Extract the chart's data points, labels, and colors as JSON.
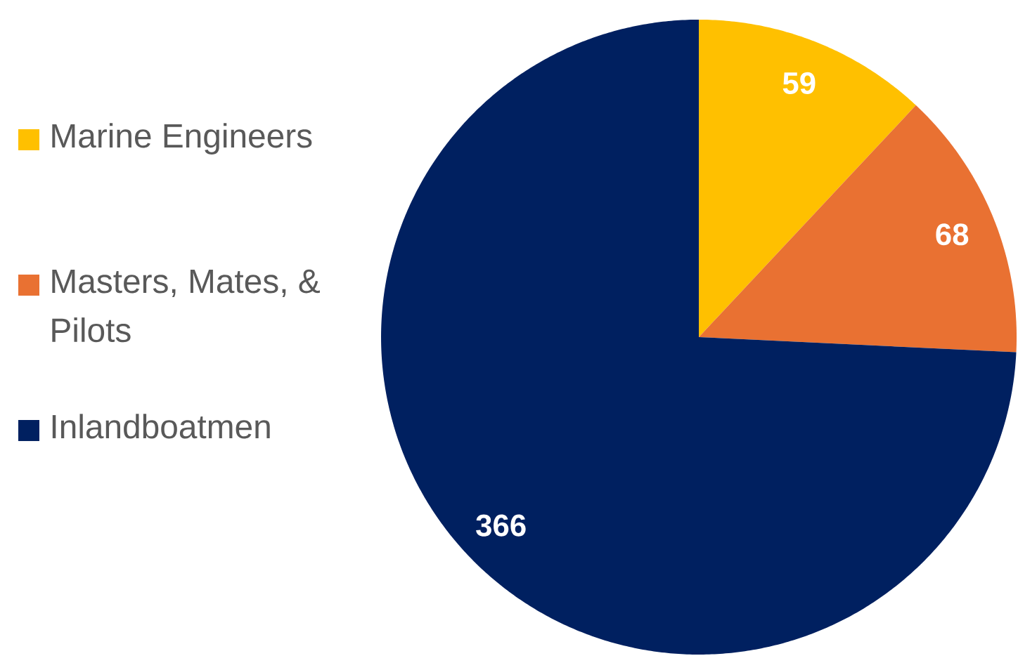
{
  "chart_data": {
    "type": "pie",
    "categories": [
      "Marine Engineers",
      "Masters, Mates, & Pilots",
      "Inlandboatmen"
    ],
    "values": [
      59,
      68,
      366
    ],
    "colors": [
      "#ffc000",
      "#e97132",
      "#002060"
    ],
    "data_labels": true,
    "legend": "left"
  }
}
